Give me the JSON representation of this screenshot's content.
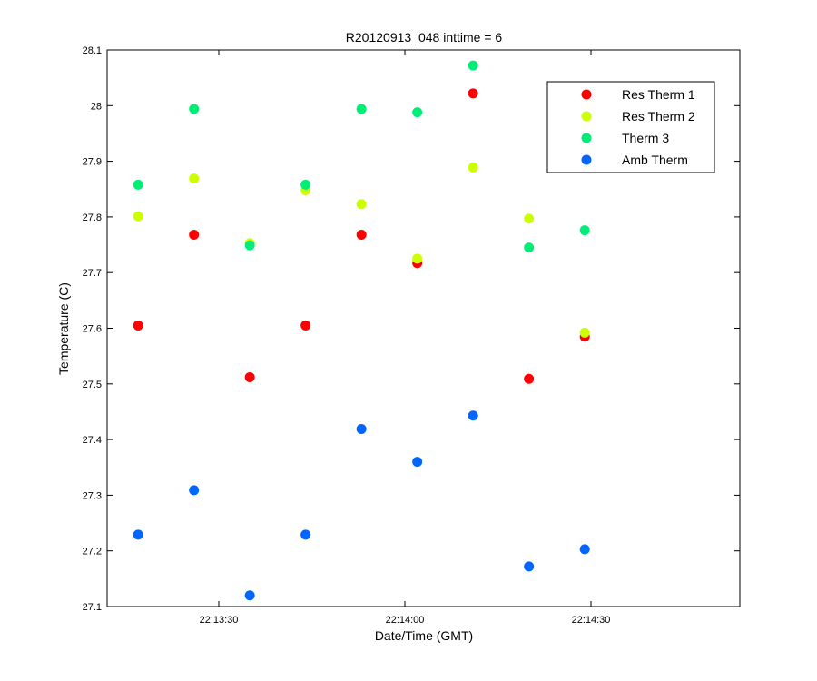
{
  "chart_data": {
    "type": "scatter",
    "title": "R20120913_048 inttime = 6",
    "xlabel": "Date/Time (GMT)",
    "ylabel": "Temperature (C)",
    "x_tick_labels": [
      "22:13:30",
      "22:14:00",
      "22:14:30"
    ],
    "x_tick_seconds": [
      30,
      60,
      90
    ],
    "xlim_seconds": [
      12,
      114
    ],
    "ylim": [
      27.1,
      28.1
    ],
    "y_ticks": [
      "27.1",
      "27.2",
      "27.3",
      "27.4",
      "27.5",
      "27.6",
      "27.7",
      "27.8",
      "27.9",
      "28",
      "28.1"
    ],
    "legend_position": "top-right",
    "x_time_of_day": [
      "22:13:17",
      "22:13:26",
      "22:13:35",
      "22:13:44",
      "22:13:53",
      "22:14:02",
      "22:14:11",
      "22:14:20",
      "22:14:29"
    ],
    "x_seconds": [
      17,
      26,
      35,
      44,
      53,
      62,
      71,
      80,
      89
    ],
    "series": [
      {
        "name": "Res Therm 1",
        "color": "#ff0000",
        "values": [
          27.605,
          27.768,
          27.512,
          27.605,
          27.768,
          27.717,
          28.022,
          27.509,
          27.585
        ]
      },
      {
        "name": "Res Therm 2",
        "color": "#ccff00",
        "values": [
          27.801,
          27.869,
          27.753,
          27.848,
          27.823,
          27.725,
          27.889,
          27.797,
          27.592
        ]
      },
      {
        "name": "Therm 3",
        "color": "#00ee77",
        "values": [
          27.858,
          27.994,
          27.749,
          27.858,
          27.994,
          27.988,
          28.072,
          27.745,
          27.776
        ]
      },
      {
        "name": "Amb Therm",
        "color": "#0066ff",
        "values": [
          27.229,
          27.309,
          27.12,
          27.229,
          27.419,
          27.36,
          27.443,
          27.172,
          27.203
        ]
      }
    ]
  }
}
